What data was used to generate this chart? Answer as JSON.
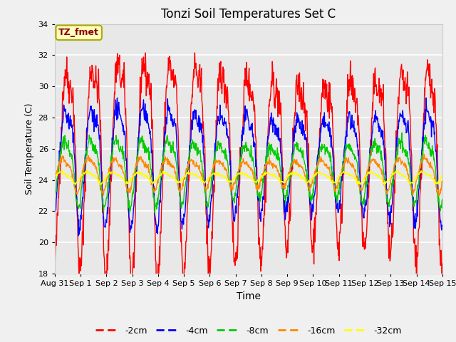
{
  "title": "Tonzi Soil Temperatures Set C",
  "xlabel": "Time",
  "ylabel": "Soil Temperature (C)",
  "ylim": [
    18,
    34
  ],
  "yticks": [
    18,
    20,
    22,
    24,
    26,
    28,
    30,
    32,
    34
  ],
  "bg_color": "#e8e8e8",
  "annotation_text": "TZ_fmet",
  "annotation_fgcolor": "#8b0000",
  "annotation_bgcolor": "#ffffc0",
  "annotation_edgecolor": "#aaaa00",
  "series": {
    "-2cm": {
      "color": "#ff0000",
      "amplitude": 5.8,
      "mean": 26.0,
      "phase": 0.0,
      "noise": 0.6,
      "trend_amp": 1.5,
      "trend_phase": 0.0
    },
    "-4cm": {
      "color": "#0000ff",
      "amplitude": 3.2,
      "mean": 25.5,
      "phase": 0.2,
      "noise": 0.3,
      "trend_amp": 0.8,
      "trend_phase": 0.3
    },
    "-8cm": {
      "color": "#00cc00",
      "amplitude": 1.8,
      "mean": 24.8,
      "phase": 0.5,
      "noise": 0.2,
      "trend_amp": 0.6,
      "trend_phase": 0.6
    },
    "-16cm": {
      "color": "#ff8800",
      "amplitude": 0.9,
      "mean": 24.5,
      "phase": 0.9,
      "noise": 0.1,
      "trend_amp": 0.3,
      "trend_phase": 1.0
    },
    "-32cm": {
      "color": "#ffff00",
      "amplitude": 0.3,
      "mean": 24.2,
      "phase": 1.4,
      "noise": 0.05,
      "trend_amp": 0.1,
      "trend_phase": 1.5
    }
  },
  "n_points": 1000,
  "days": 15,
  "legend_labels": [
    "-2cm",
    "-4cm",
    "-8cm",
    "-16cm",
    "-32cm"
  ],
  "legend_colors": [
    "#ff0000",
    "#0000ff",
    "#00cc00",
    "#ff8800",
    "#ffff00"
  ],
  "xtick_positions": [
    0,
    1,
    2,
    3,
    4,
    5,
    6,
    7,
    8,
    9,
    10,
    11,
    12,
    13,
    14,
    15
  ],
  "xtick_labels": [
    "Aug 31",
    "Sep 1",
    "Sep 2",
    "Sep 3",
    "Sep 4",
    "Sep 5",
    "Sep 6",
    "Sep 7",
    "Sep 8",
    "Sep 9",
    "Sep 10",
    "Sep 11",
    "Sep 12",
    "Sep 13",
    "Sep 14",
    "Sep 15"
  ],
  "fig_width": 6.4,
  "fig_height": 4.8,
  "dpi": 100
}
